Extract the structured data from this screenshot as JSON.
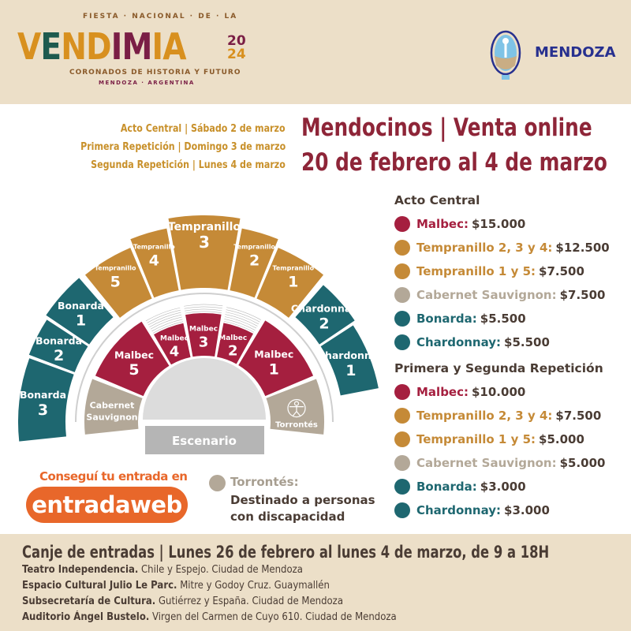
{
  "header": {
    "logo": {
      "top_line": "FIESTA · NACIONAL · DE · LA",
      "word": "VENDIMIA",
      "year_top": "20",
      "year_bottom": "24",
      "subtitle": "CORONADOS DE HISTORIA Y FUTURO",
      "location": "MENDOZA · ARGENTINA"
    },
    "government_logo": "MENDOZA"
  },
  "event_dates": [
    "Acto Central | Sábado 2 de marzo",
    "Primera Repetición | Domingo 3 de marzo",
    "Segunda Repetición | Lunes 4 de marzo"
  ],
  "headline": {
    "line1": "Mendocinos | Venta online",
    "line2": "20 de febrero al 4 de marzo"
  },
  "colors": {
    "malbec": "#a51f3f",
    "tempranillo": "#c58a37",
    "cabernet": "#b3a898",
    "bonarda": "#1e6770",
    "chardonnay": "#1e6770",
    "torrontes": "#b3a898",
    "stage": "#b5b5b5",
    "accent_orange": "#e8672a",
    "headline": "#8e2538",
    "dates": "#c8902a",
    "band": "#ecdfc8"
  },
  "seating": {
    "stage_label": "Escenario",
    "sections": [
      {
        "kind": "tempranillo",
        "name": "Tempranillo",
        "number": "3"
      },
      {
        "kind": "tempranillo",
        "name": "Tempranillo",
        "number": "2"
      },
      {
        "kind": "tempranillo",
        "name": "Tempranillo",
        "number": "1"
      },
      {
        "kind": "tempranillo",
        "name": "Tempranillo",
        "number": "4"
      },
      {
        "kind": "tempranillo",
        "name": "Tempranillo",
        "number": "5"
      },
      {
        "kind": "bonarda",
        "name": "Bonarda",
        "number": "1"
      },
      {
        "kind": "bonarda",
        "name": "Bonarda",
        "number": "2"
      },
      {
        "kind": "bonarda",
        "name": "Bonarda",
        "number": "3"
      },
      {
        "kind": "chardonnay",
        "name": "Chardonnay",
        "number": "2"
      },
      {
        "kind": "chardonnay",
        "name": "Chardonnay",
        "number": "1"
      },
      {
        "kind": "malbec",
        "name": "Malbec",
        "number": "5"
      },
      {
        "kind": "malbec",
        "name": "Malbec",
        "number": "4"
      },
      {
        "kind": "malbec",
        "name": "Malbec",
        "number": "3"
      },
      {
        "kind": "malbec",
        "name": "Malbec",
        "number": "2"
      },
      {
        "kind": "malbec",
        "name": "Malbec",
        "number": "1"
      },
      {
        "kind": "cabernet",
        "name": "Cabernet",
        "number": "Sauvignon"
      },
      {
        "kind": "torrontes",
        "name": "Torrontés",
        "number": "",
        "icon": "accessibility-icon"
      }
    ]
  },
  "prices": {
    "acto_central": {
      "title": "Acto Central",
      "items": [
        {
          "kind": "malbec",
          "label": "Malbec:",
          "price": "$15.000"
        },
        {
          "kind": "tempranillo",
          "label": "Tempranillo 2, 3 y 4:",
          "price": "$12.500"
        },
        {
          "kind": "tempranillo",
          "label": "Tempranillo 1 y 5:",
          "price": "$7.500"
        },
        {
          "kind": "cabernet",
          "label": "Cabernet Sauvignon:",
          "price": "$7.500"
        },
        {
          "kind": "bonarda",
          "label": "Bonarda:",
          "price": "$5.500"
        },
        {
          "kind": "chardonnay",
          "label": "Chardonnay:",
          "price": "$5.500"
        }
      ]
    },
    "repeticiones": {
      "title": "Primera y Segunda Repetición",
      "items": [
        {
          "kind": "malbec",
          "label": "Malbec:",
          "price": "$10.000"
        },
        {
          "kind": "tempranillo",
          "label": "Tempranillo 2, 3 y 4:",
          "price": "$7.500"
        },
        {
          "kind": "tempranillo",
          "label": "Tempranillo 1 y 5:",
          "price": "$5.000"
        },
        {
          "kind": "cabernet",
          "label": "Cabernet Sauvignon:",
          "price": "$5.000"
        },
        {
          "kind": "bonarda",
          "label": "Bonarda:",
          "price": "$3.000"
        },
        {
          "kind": "chardonnay",
          "label": "Chardonnay:",
          "price": "$3.000"
        }
      ]
    }
  },
  "tickets": {
    "cta": "Conseguí tu entrada en",
    "button": "entradaweb"
  },
  "torrontes_note": {
    "title": "Torrontés:",
    "line1": "Destinado a personas",
    "line2": "con discapacidad"
  },
  "canje": {
    "title": "Canje de entradas | Lunes 26 de febrero al lunes 4 de marzo, de 9 a 18H",
    "locations": [
      {
        "name": "Teatro Independencia.",
        "address": "Chile y Espejo. Ciudad de Mendoza"
      },
      {
        "name": "Espacio Cultural Julio Le Parc.",
        "address": "Mitre y Godoy Cruz. Guaymallén"
      },
      {
        "name": "Subsecretaría de Cultura.",
        "address": "Gutiérrez y España. Ciudad de Mendoza"
      },
      {
        "name": "Auditorio Ángel Bustelo.",
        "address": "Virgen del Carmen de Cuyo 610. Ciudad de Mendoza"
      }
    ]
  }
}
